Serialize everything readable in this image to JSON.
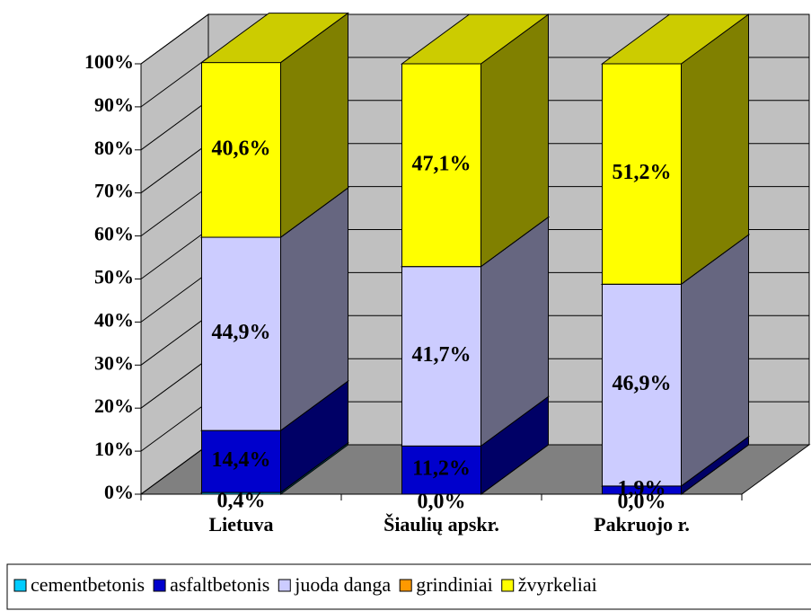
{
  "chart_data": {
    "type": "bar3d_stacked",
    "categories": [
      "Lietuva",
      "Šiaulių apskr.",
      "Pakruojo r."
    ],
    "series": [
      {
        "name": "cementbetonis",
        "color": "#00ccff",
        "values": [
          0.4,
          0.0,
          0.0
        ],
        "value_labels": [
          "0,4%",
          "0,0%",
          "0,0%"
        ]
      },
      {
        "name": "asfaltbetonis",
        "color": "#0000cc",
        "values": [
          14.4,
          11.2,
          1.9
        ],
        "value_labels": [
          "14,4%",
          "11,2%",
          "1,9%"
        ]
      },
      {
        "name": "juoda danga",
        "color": "#ccccff",
        "values": [
          44.9,
          41.7,
          46.9
        ],
        "value_labels": [
          "44,9%",
          "41,7%",
          "46,9%"
        ]
      },
      {
        "name": "grindiniai",
        "color": "#ff9900",
        "values": [
          0,
          0,
          0
        ]
      },
      {
        "name": "žvyrkeliai",
        "color": "#ffff00",
        "values": [
          40.6,
          47.1,
          51.2
        ],
        "value_labels": [
          "40,6%",
          "47,1%",
          "51,2%"
        ]
      }
    ],
    "ylim": [
      0,
      100
    ],
    "yticks": [
      {
        "value": 0,
        "label": "0%"
      },
      {
        "value": 10,
        "label": "10%"
      },
      {
        "value": 20,
        "label": "20%"
      },
      {
        "value": 30,
        "label": "30%"
      },
      {
        "value": 40,
        "label": "40%"
      },
      {
        "value": 50,
        "label": "50%"
      },
      {
        "value": 60,
        "label": "60%"
      },
      {
        "value": 70,
        "label": "70%"
      },
      {
        "value": 80,
        "label": "80%"
      },
      {
        "value": 90,
        "label": "90%"
      },
      {
        "value": 100,
        "label": "100%"
      }
    ],
    "grid": true,
    "legend": "bottom"
  }
}
